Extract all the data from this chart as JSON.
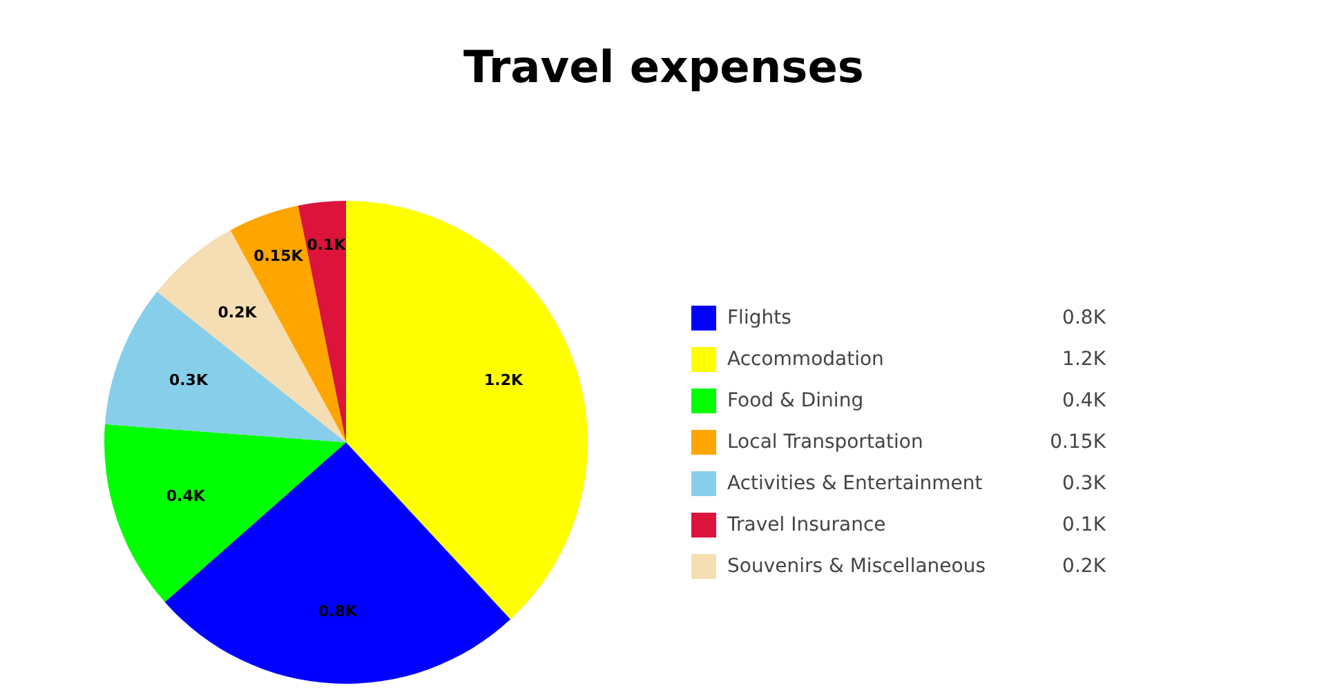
{
  "chart_data": {
    "type": "pie",
    "title": "Travel expenses",
    "categories": [
      "Flights",
      "Accommodation",
      "Food & Dining",
      "Local Transportation",
      "Activities & Entertainment",
      "Travel Insurance",
      "Souvenirs & Miscellaneous"
    ],
    "values": [
      800,
      1200,
      400,
      150,
      300,
      100,
      200
    ],
    "colors": [
      "#0000ff",
      "#ffff00",
      "#00ff00",
      "#ffa500",
      "#87ceeb",
      "#dc143c",
      "#f5deb3"
    ],
    "value_labels": [
      "0.8K",
      "1.2K",
      "0.4K",
      "0.15K",
      "0.3K",
      "0.1K",
      "0.2K"
    ],
    "legend": "right"
  }
}
